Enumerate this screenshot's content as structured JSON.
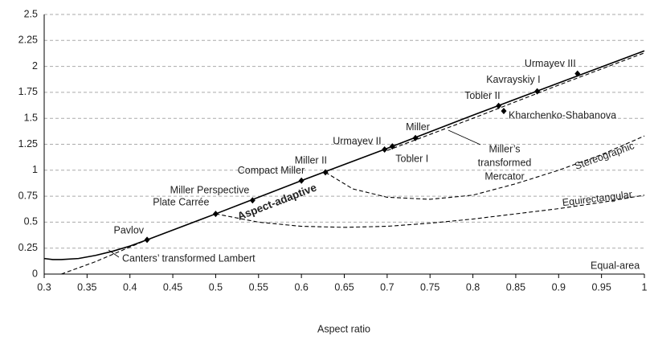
{
  "chart_data": {
    "type": "line",
    "x_label": "Aspect ratio",
    "xlim": [
      0.3,
      1
    ],
    "xticks": [
      0.3,
      0.35,
      0.4,
      0.45,
      0.5,
      0.55,
      0.6,
      0.65,
      0.7,
      0.75,
      0.8,
      0.85,
      0.9,
      0.95,
      1
    ],
    "ylim": [
      0,
      2.5
    ],
    "yticks": [
      0,
      0.25,
      0.5,
      0.75,
      1,
      1.25,
      1.5,
      1.75,
      2,
      2.25,
      2.5
    ],
    "grid": true,
    "series": [
      {
        "name": "Aspect-adaptive",
        "color": "#000000",
        "style": "solid",
        "x": [
          0.3,
          0.31,
          0.32,
          0.34,
          0.36,
          0.38,
          0.4,
          0.42,
          0.5,
          0.6,
          0.7,
          0.8,
          0.9,
          1
        ],
        "values": [
          0.15,
          0.14,
          0.14,
          0.15,
          0.18,
          0.22,
          0.27,
          0.33,
          0.58,
          0.9,
          1.21,
          1.53,
          1.84,
          2.15
        ]
      },
      {
        "name": "Canters’ transformed Lambert",
        "color": "#000000",
        "style": "dashed",
        "x": [
          0.32,
          0.36,
          0.4,
          0.42
        ],
        "values": [
          0,
          0.12,
          0.26,
          0.33
        ]
      },
      {
        "name": "Stereographic",
        "color": "#000000",
        "style": "dashed",
        "x": [
          0.628,
          0.66,
          0.7,
          0.75,
          0.8,
          0.85,
          0.9,
          0.95,
          1
        ],
        "values": [
          0.98,
          0.82,
          0.74,
          0.72,
          0.76,
          0.87,
          1.0,
          1.15,
          1.33
        ]
      },
      {
        "name": "Equirectangular",
        "color": "#000000",
        "style": "dashed",
        "x": [
          0.5,
          0.55,
          0.6,
          0.65,
          0.7,
          0.75,
          0.8,
          0.85,
          0.9,
          0.95,
          1
        ],
        "values": [
          0.58,
          0.5,
          0.46,
          0.45,
          0.46,
          0.49,
          0.53,
          0.58,
          0.63,
          0.69,
          0.76
        ]
      },
      {
        "name": "Equal-area",
        "color": "#000000",
        "style": "dashed",
        "x": [
          0.32,
          1
        ],
        "values": [
          0,
          0
        ]
      },
      {
        "name": [
          "Miller’s",
          "transformed",
          "Mercator"
        ],
        "color": "#000000",
        "style": "dashed",
        "x": [
          0.7,
          0.8,
          0.9,
          1
        ],
        "values": [
          1.19,
          1.5,
          1.82,
          2.13
        ]
      }
    ],
    "points": [
      {
        "label": "Pavlov",
        "x": 0.42,
        "y": 0.33
      },
      {
        "label": "Plate Carrée",
        "x": 0.5,
        "y": 0.58
      },
      {
        "label": "Miller Perspective",
        "x": 0.543,
        "y": 0.71
      },
      {
        "label": "Compact Miller",
        "x": 0.6,
        "y": 0.9
      },
      {
        "label": "Miller II",
        "x": 0.628,
        "y": 0.98
      },
      {
        "label": "Urmayev II",
        "x": 0.697,
        "y": 1.2
      },
      {
        "label": "Tobler I",
        "x": 0.706,
        "y": 1.23
      },
      {
        "label": "Miller",
        "x": 0.733,
        "y": 1.31
      },
      {
        "label": "Tobler II",
        "x": 0.83,
        "y": 1.62
      },
      {
        "label": "Kharchenko-Shabanova",
        "x": 0.836,
        "y": 1.57
      },
      {
        "label": "Kavrayskiy I",
        "x": 0.875,
        "y": 1.76
      },
      {
        "label": "Urmayev III",
        "x": 0.922,
        "y": 1.93
      }
    ]
  }
}
